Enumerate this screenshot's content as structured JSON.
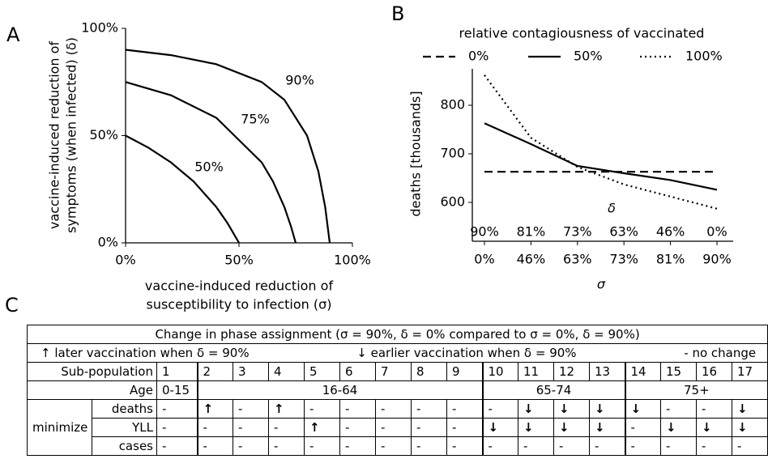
{
  "panels": [
    "A",
    "B",
    "C"
  ],
  "chart_data": [
    {
      "type": "line",
      "xlabel": [
        "vaccine-induced reduction of",
        "susceptibility to infection (σ)"
      ],
      "ylabel": [
        "vaccine-induced reduction of",
        "symptoms (when infected) (δ)"
      ],
      "xlim": [
        0,
        100
      ],
      "ylim": [
        0,
        100
      ],
      "xticks": [
        {
          "value": 0,
          "label": "0%"
        },
        {
          "value": 50,
          "label": "50%"
        },
        {
          "value": 100,
          "label": "100%"
        }
      ],
      "yticks": [
        {
          "value": 0,
          "label": "0%"
        },
        {
          "value": 50,
          "label": "50%"
        },
        {
          "value": 100,
          "label": "100%"
        }
      ],
      "series": [
        {
          "name": "50%",
          "color": "#000000",
          "x": [
            0,
            10,
            20,
            30,
            40,
            45,
            50
          ],
          "values": [
            50,
            44.4,
            37.5,
            28.6,
            16.7,
            9.1,
            0
          ]
        },
        {
          "name": "75%",
          "color": "#000000",
          "x": [
            0,
            20,
            40,
            60,
            65,
            70,
            73,
            75
          ],
          "values": [
            75,
            68.8,
            58.3,
            37.5,
            28.6,
            16.7,
            7.4,
            0
          ]
        },
        {
          "name": "90%",
          "color": "#000000",
          "x": [
            0,
            20,
            40,
            60,
            70,
            80,
            85,
            88,
            90
          ],
          "values": [
            90,
            87.5,
            83.3,
            75,
            66.7,
            50,
            33.3,
            16.7,
            0
          ]
        }
      ]
    },
    {
      "type": "line",
      "legend_title": "relative contagiousness of vaccinated",
      "ylabel": "deaths [thousands]",
      "xlabel": "σ",
      "x2label": "δ",
      "categories": [
        "0%",
        "46%",
        "63%",
        "73%",
        "81%",
        "90%"
      ],
      "categories_top": [
        "90%",
        "81%",
        "73%",
        "63%",
        "46%",
        "0%"
      ],
      "ylim": [
        520,
        875
      ],
      "yticks": [
        600,
        700,
        800
      ],
      "series": [
        {
          "name": "0%",
          "color": "#000000",
          "dash": "dashed",
          "values": [
            663,
            663,
            663,
            663,
            663,
            663
          ]
        },
        {
          "name": "50%",
          "color": "#000000",
          "dash": "solid",
          "values": [
            763,
            720,
            675,
            660,
            646,
            626
          ]
        },
        {
          "name": "100%",
          "color": "#000000",
          "dash": "dotted",
          "values": [
            862,
            733,
            673,
            637,
            612,
            587
          ]
        }
      ]
    }
  ],
  "table": {
    "title": "Change in phase assignment (σ = 90%, δ = 0% compared to σ = 0%, δ = 90%)",
    "legend": [
      "↑  later vaccination when δ = 90%",
      "↓  earlier vaccination when δ = 90%",
      "-  no change"
    ],
    "header_label": "Sub-population",
    "columns": [
      "1",
      "2",
      "3",
      "4",
      "5",
      "6",
      "7",
      "8",
      "9",
      "10",
      "11",
      "12",
      "13",
      "14",
      "15",
      "16",
      "17"
    ],
    "age_label": "Age",
    "ages": [
      "0-15",
      "16-64",
      null,
      null,
      null,
      null,
      null,
      null,
      null,
      "65-74",
      null,
      null,
      null,
      "75+",
      null,
      null,
      null
    ],
    "minimize_label": "minimize",
    "rows": [
      {
        "label": "deaths",
        "cells": [
          "-",
          "↑",
          "-",
          "↑",
          "-",
          "-",
          "-",
          "-",
          "-",
          "-",
          "↓",
          "↓",
          "↓",
          "↓",
          "-",
          "-",
          "↓"
        ]
      },
      {
        "label": "YLL",
        "cells": [
          "-",
          "-",
          "-",
          "-",
          "↑",
          "-",
          "-",
          "-",
          "-",
          "↓",
          "↓",
          "↓",
          "↓",
          "-",
          "↓",
          "↓",
          "↓"
        ]
      },
      {
        "label": "cases",
        "cells": [
          "-",
          "-",
          "-",
          "-",
          "-",
          "-",
          "-",
          "-",
          "-",
          "-",
          "-",
          "-",
          "-",
          "-",
          "-",
          "-",
          "-"
        ]
      }
    ]
  }
}
